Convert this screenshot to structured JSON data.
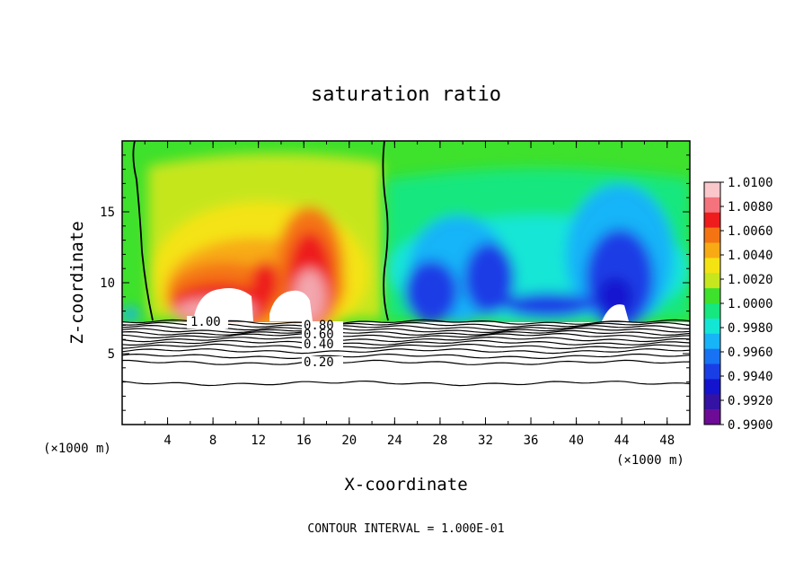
{
  "chart_data": {
    "type": "heatmap",
    "title": "saturation ratio",
    "xlabel": "X-coordinate",
    "ylabel": "Z-coordinate",
    "x_unit_note": "(×1000 m)",
    "x_ticks": [
      4,
      8,
      12,
      16,
      20,
      24,
      28,
      32,
      36,
      40,
      44,
      48
    ],
    "y_ticks": [
      5,
      10,
      15
    ],
    "xlim": [
      0,
      50
    ],
    "ylim": [
      0,
      20
    ],
    "contour_interval_note": "CONTOUR INTERVAL = 1.000E-01",
    "contour_labels": [
      "1.00",
      "0.80",
      "0.60",
      "0.40",
      "0.20"
    ],
    "colorbar": {
      "levels": [
        "1.0100",
        "1.0080",
        "1.0060",
        "1.0040",
        "1.0020",
        "1.0000",
        "0.9980",
        "0.9960",
        "0.9940",
        "0.9920",
        "0.9900"
      ],
      "colors": [
        "#fac7cb",
        "#f5737d",
        "#ee1c1c",
        "#f47414",
        "#f8aa14",
        "#f4e313",
        "#c6e61e",
        "#3ee12c",
        "#16e77e",
        "#14e6d6",
        "#17b4f8",
        "#1773f4",
        "#1a3ee6",
        "#1414cf",
        "#3412a4",
        "#6e0b96"
      ]
    }
  }
}
